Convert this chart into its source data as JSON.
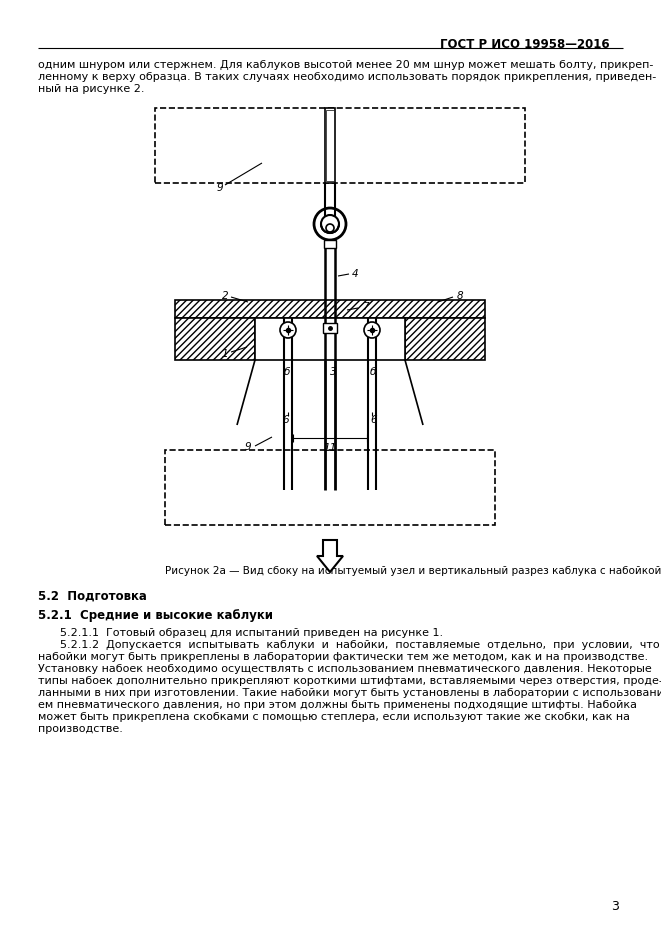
{
  "page_width": 6.61,
  "page_height": 9.36,
  "background_color": "#ffffff",
  "header_text": "ГОСТ Р ИСО 19958—2016",
  "page_number": "3",
  "fig_caption": "Рисунок 2а — Вид сбоку на испытуемый узел и вертикальный разрез каблука с набойкой",
  "section_52": "5.2  Подготовка",
  "section_521": "5.2.1  Средние и высокие каблуки",
  "para_5211": "5.2.1.1  Готовый образец для испытаний приведен на рисунке 1.",
  "intro_lines": [
    "одним шнуром или стержнем. Для каблуков высотой менее 20 мм шнур может мешать болту, прикреп-",
    "ленному к верху образца. В таких случаях необходимо использовать порядок прикрепления, приведен-",
    "ный на рисунке 2."
  ],
  "para_5212_lines": [
    "5.2.1.2  Допускается  испытывать  каблуки  и  набойки,  поставляемые  отдельно,  при  условии,  что",
    "набойки могут быть прикреплены в лаборатории фактически тем же методом, как и на производстве.",
    "Установку набоек необходимо осуществлять с использованием пневматического давления. Некоторые",
    "типы набоек дополнительно прикрепляют короткими штифтами, вставляемыми через отверстия, проде-",
    "ланными в них при изготовлении. Такие набойки могут быть установлены в лаборатории с использовани-",
    "ем пневматического давления, но при этом должны быть применены подходящие штифты. Набойка",
    "может быть прикреплена скобками с помощью степлера, если используют такие же скобки, как на",
    "производстве."
  ]
}
